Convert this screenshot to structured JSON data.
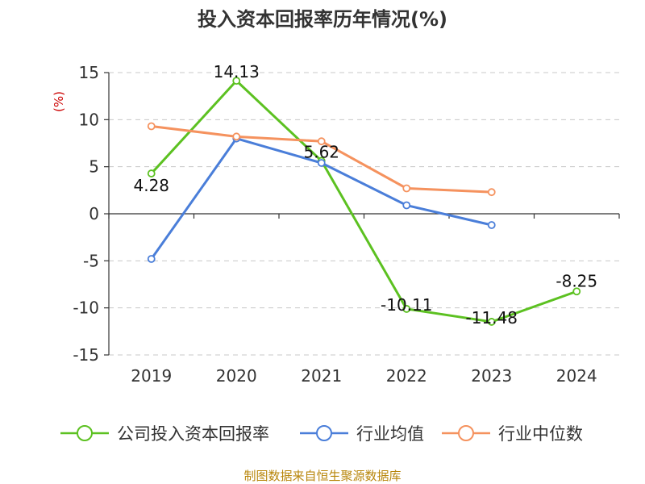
{
  "chart_data": {
    "type": "line",
    "title": "投入资本回报率历年情况(%)",
    "ylabel": "(%)",
    "xlabel": "",
    "categories": [
      "2019",
      "2020",
      "2021",
      "2022",
      "2023",
      "2024"
    ],
    "ylim": [
      -15,
      15
    ],
    "yticks": [
      15,
      10,
      5,
      0,
      -5,
      -10,
      -15
    ],
    "grid": true,
    "legend_position": "bottom",
    "series": [
      {
        "name": "公司投入资本回报率",
        "color": "#5cc121",
        "values": [
          4.28,
          14.13,
          5.62,
          -10.11,
          -11.48,
          -8.25
        ],
        "labels": [
          "4.28",
          "14.13",
          "5.62",
          "-10.11",
          "-11.48",
          "-8.25"
        ]
      },
      {
        "name": "行业均值",
        "color": "#4a7ed9",
        "values": [
          -4.8,
          8.0,
          5.4,
          0.9,
          -1.2,
          null
        ]
      },
      {
        "name": "行业中位数",
        "color": "#f5925e",
        "values": [
          9.3,
          8.2,
          7.7,
          2.7,
          2.3,
          null
        ]
      }
    ]
  },
  "source": "制图数据来自恒生聚源数据库"
}
